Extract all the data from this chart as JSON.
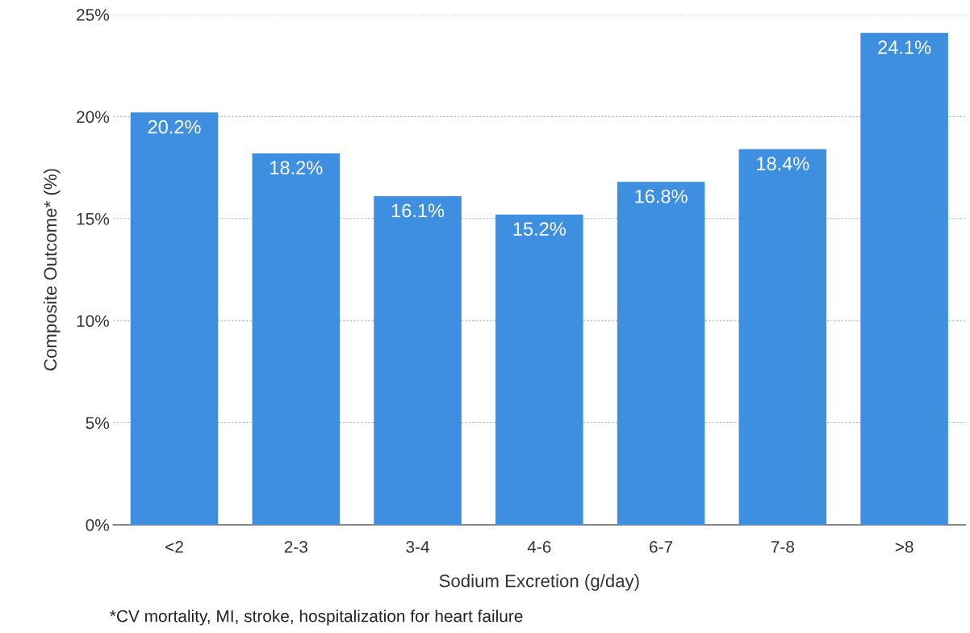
{
  "chart_data": {
    "type": "bar",
    "categories": [
      "<2",
      "2-3",
      "3-4",
      "4-6",
      "6-7",
      "7-8",
      ">8"
    ],
    "values": [
      20.2,
      18.2,
      16.1,
      15.2,
      16.8,
      18.4,
      24.1
    ],
    "value_labels": [
      "20.2%",
      "18.2%",
      "16.1%",
      "15.2%",
      "16.8%",
      "18.4%",
      "24.1%"
    ],
    "color": "#3f8fe0",
    "xlabel": "Sodium Excretion (g/day)",
    "ylabel": "Composite Outcome* (%)",
    "ylim": [
      0,
      25
    ],
    "yticks": [
      {
        "value": 0,
        "label": "0%"
      },
      {
        "value": 5,
        "label": "5%"
      },
      {
        "value": 10,
        "label": "10%"
      },
      {
        "value": 15,
        "label": "15%"
      },
      {
        "value": 20,
        "label": "20%"
      },
      {
        "value": 25,
        "label": "25%"
      }
    ],
    "grid": "y",
    "annotations": [
      "*CV mortality, MI, stroke, hospitalization for heart failure"
    ]
  }
}
